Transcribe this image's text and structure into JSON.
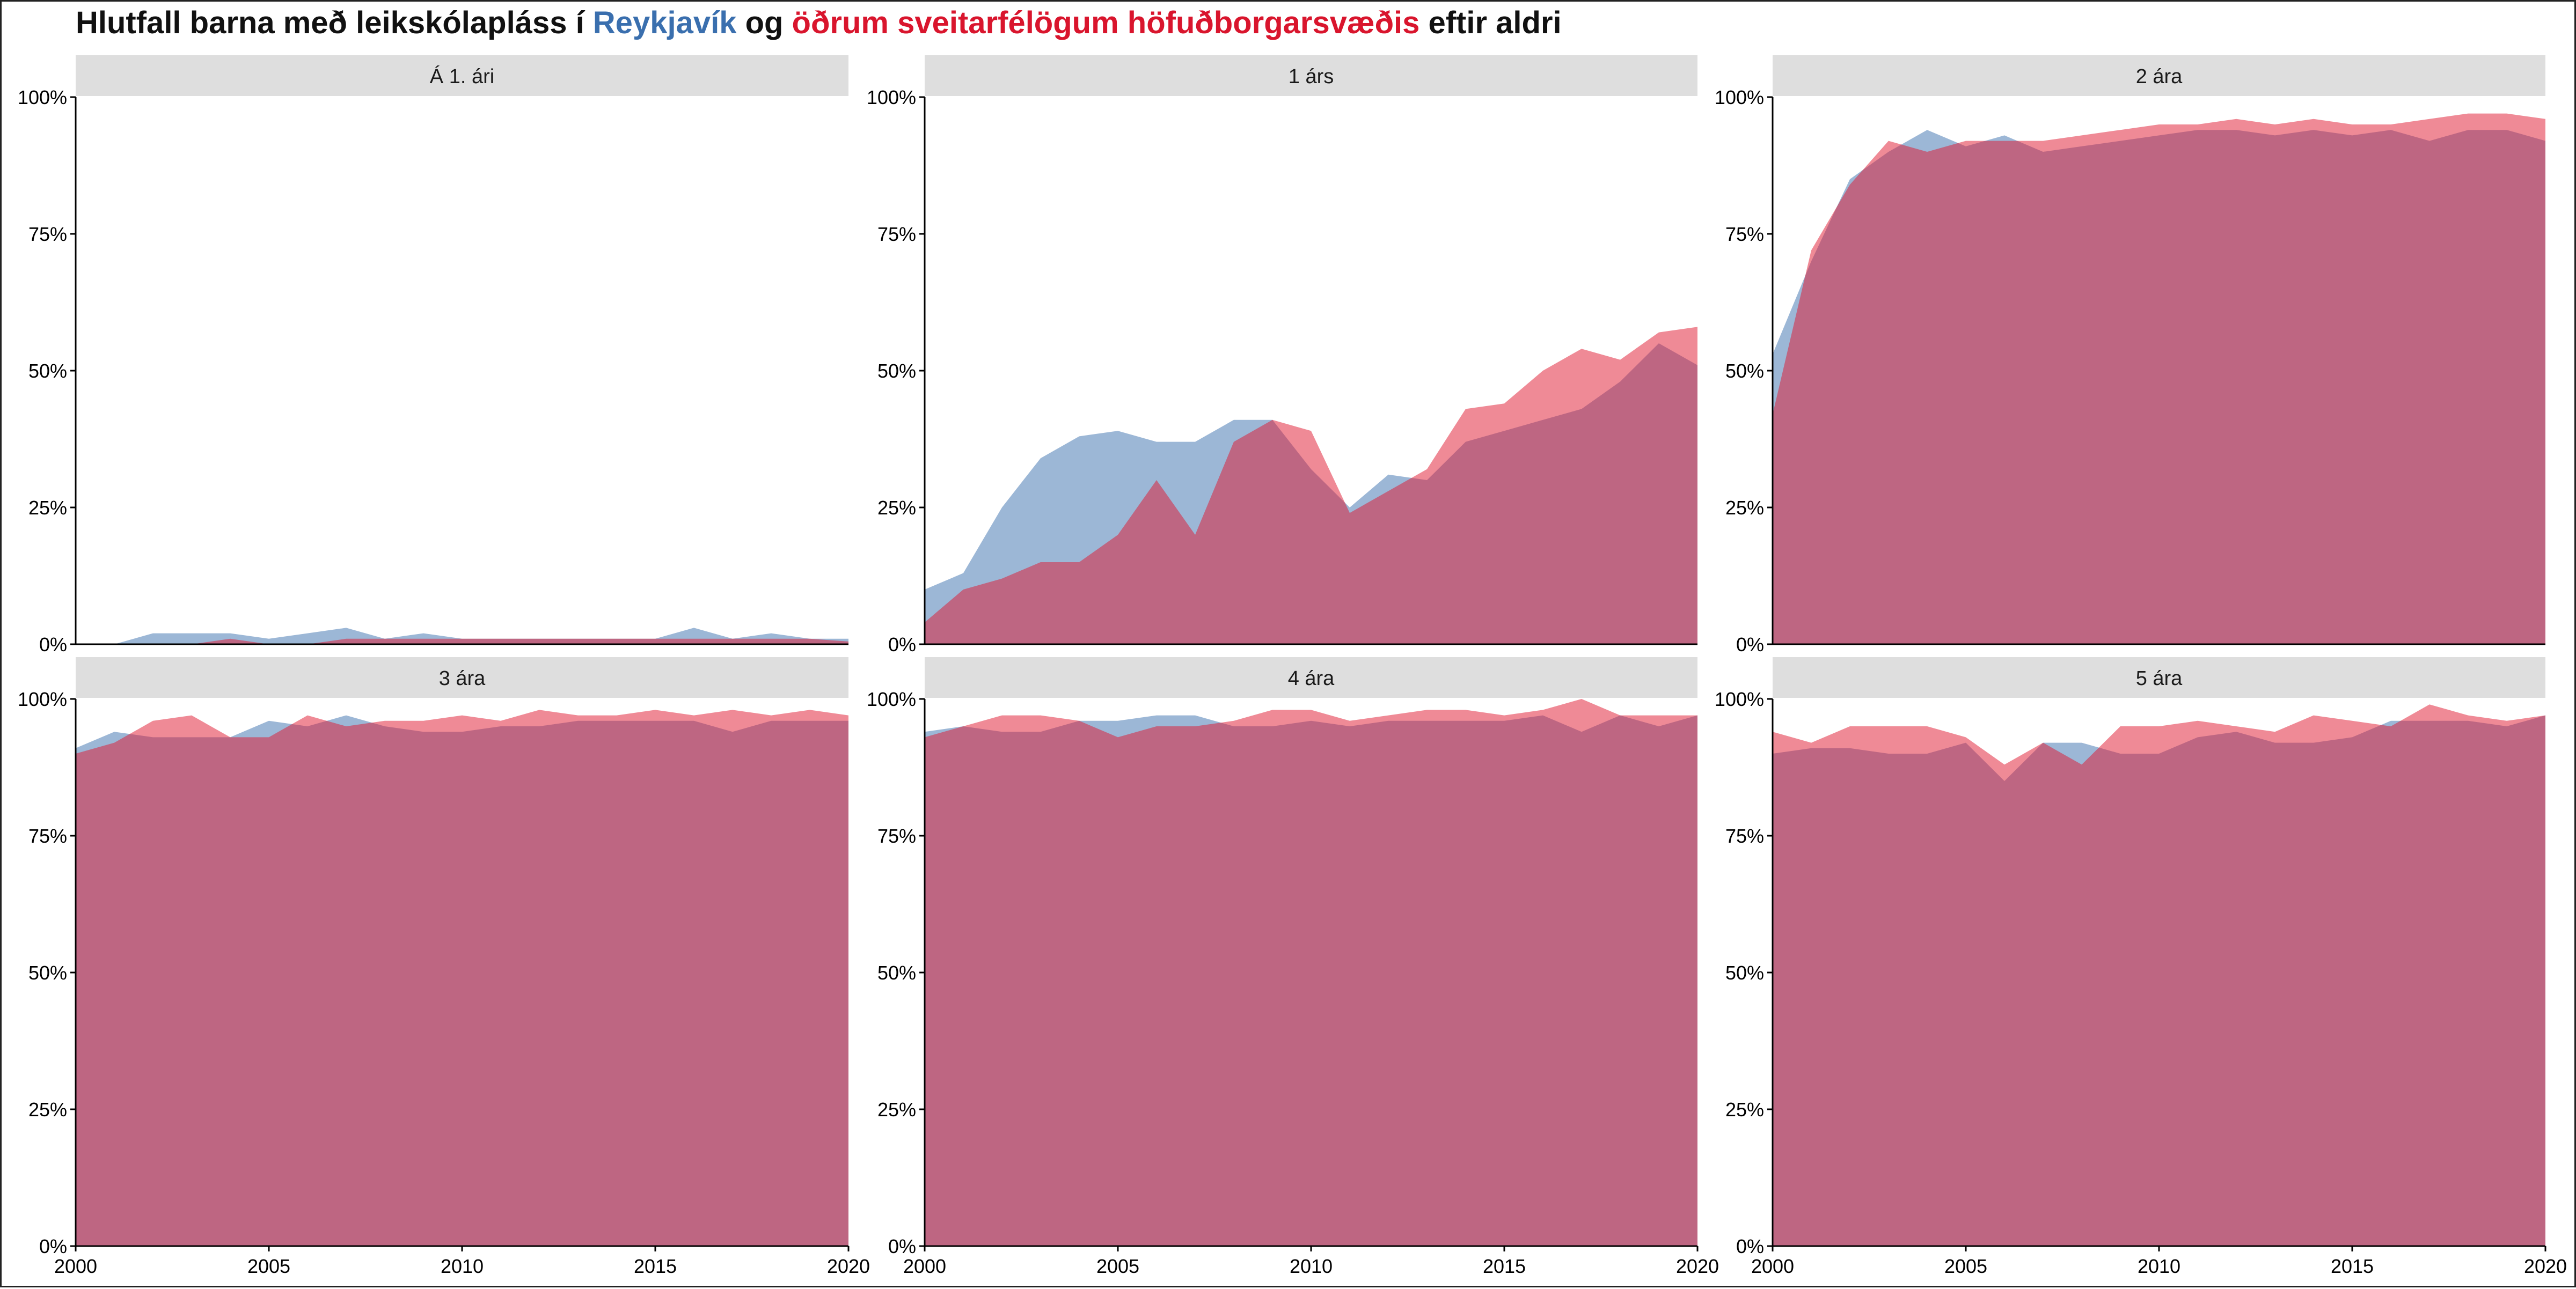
{
  "title": {
    "part1": "Hlutfall barna með leikskólapláss í ",
    "reykjavik": "Reykjavík",
    "part2": " og ",
    "others": "öðrum sveitarfélögum höfuðborgarsvæðis",
    "part3": " eftir aldri"
  },
  "colors": {
    "reykjavik": "#3a6fae",
    "others": "#e0152d",
    "strip": "#dedede"
  },
  "chart_data": {
    "type": "area",
    "facet_by": "aldur",
    "x": [
      2000,
      2001,
      2002,
      2003,
      2004,
      2005,
      2006,
      2007,
      2008,
      2009,
      2010,
      2011,
      2012,
      2013,
      2014,
      2015,
      2016,
      2017,
      2018,
      2019,
      2020
    ],
    "xlim": [
      2000,
      2020
    ],
    "xticks": [
      "2000",
      "2005",
      "2010",
      "2015",
      "2020"
    ],
    "ylim": [
      0,
      1
    ],
    "yticks": [
      "0%",
      "25%",
      "50%",
      "75%",
      "100%"
    ],
    "series_keys": [
      "reykjavik",
      "others"
    ],
    "facets": [
      {
        "label": "Á 1. ári",
        "reykjavik": [
          0,
          0,
          0.02,
          0.02,
          0.02,
          0.01,
          0.02,
          0.03,
          0.01,
          0.02,
          0.01,
          0.01,
          0.01,
          0.01,
          0.01,
          0.01,
          0.03,
          0.01,
          0.02,
          0.01,
          0.01
        ],
        "others": [
          0,
          0,
          0,
          0,
          0.01,
          0,
          0,
          0.01,
          0.01,
          0.01,
          0.01,
          0.01,
          0.01,
          0.01,
          0.01,
          0.01,
          0.01,
          0.01,
          0.01,
          0.01,
          0.005
        ]
      },
      {
        "label": "1 árs",
        "reykjavik": [
          0.1,
          0.13,
          0.25,
          0.34,
          0.38,
          0.39,
          0.37,
          0.37,
          0.41,
          0.41,
          0.32,
          0.25,
          0.31,
          0.3,
          0.37,
          0.39,
          0.41,
          0.43,
          0.48,
          0.55,
          0.51
        ],
        "others": [
          0.04,
          0.1,
          0.12,
          0.15,
          0.15,
          0.2,
          0.3,
          0.2,
          0.37,
          0.41,
          0.39,
          0.24,
          0.28,
          0.32,
          0.43,
          0.44,
          0.5,
          0.54,
          0.52,
          0.57,
          0.58
        ]
      },
      {
        "label": "2 ára",
        "reykjavik": [
          0.53,
          0.7,
          0.85,
          0.9,
          0.94,
          0.91,
          0.93,
          0.9,
          0.91,
          0.92,
          0.93,
          0.94,
          0.94,
          0.93,
          0.94,
          0.93,
          0.94,
          0.92,
          0.94,
          0.94,
          0.92
        ],
        "others": [
          0.42,
          0.72,
          0.84,
          0.92,
          0.9,
          0.92,
          0.92,
          0.92,
          0.93,
          0.94,
          0.95,
          0.95,
          0.96,
          0.95,
          0.96,
          0.95,
          0.95,
          0.96,
          0.97,
          0.97,
          0.96
        ]
      },
      {
        "label": "3 ára",
        "reykjavik": [
          0.91,
          0.94,
          0.93,
          0.93,
          0.93,
          0.96,
          0.95,
          0.97,
          0.95,
          0.94,
          0.94,
          0.95,
          0.95,
          0.96,
          0.96,
          0.96,
          0.96,
          0.94,
          0.96,
          0.96,
          0.96
        ],
        "others": [
          0.9,
          0.92,
          0.96,
          0.97,
          0.93,
          0.93,
          0.97,
          0.95,
          0.96,
          0.96,
          0.97,
          0.96,
          0.98,
          0.97,
          0.97,
          0.98,
          0.97,
          0.98,
          0.97,
          0.98,
          0.97
        ]
      },
      {
        "label": "4 ára",
        "reykjavik": [
          0.94,
          0.95,
          0.94,
          0.94,
          0.96,
          0.96,
          0.97,
          0.97,
          0.95,
          0.95,
          0.96,
          0.95,
          0.96,
          0.96,
          0.96,
          0.96,
          0.97,
          0.94,
          0.97,
          0.95,
          0.97
        ],
        "others": [
          0.93,
          0.95,
          0.97,
          0.97,
          0.96,
          0.93,
          0.95,
          0.95,
          0.96,
          0.98,
          0.98,
          0.96,
          0.97,
          0.98,
          0.98,
          0.97,
          0.98,
          1.0,
          0.97,
          0.97,
          0.97
        ]
      },
      {
        "label": "5 ára",
        "reykjavik": [
          0.9,
          0.91,
          0.91,
          0.9,
          0.9,
          0.92,
          0.85,
          0.92,
          0.92,
          0.9,
          0.9,
          0.93,
          0.94,
          0.92,
          0.92,
          0.93,
          0.96,
          0.96,
          0.96,
          0.95,
          0.97
        ],
        "others": [
          0.94,
          0.92,
          0.95,
          0.95,
          0.95,
          0.93,
          0.88,
          0.92,
          0.88,
          0.95,
          0.95,
          0.96,
          0.95,
          0.94,
          0.97,
          0.96,
          0.95,
          0.99,
          0.97,
          0.96,
          0.97
        ]
      }
    ]
  }
}
